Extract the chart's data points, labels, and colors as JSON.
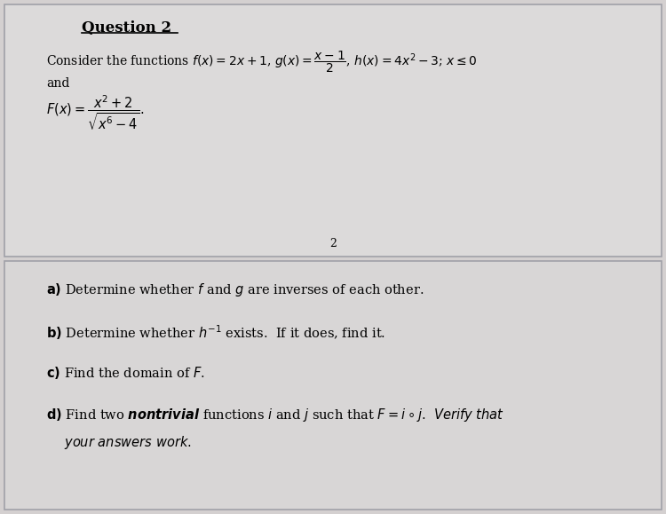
{
  "bg_color": "#d4d0d0",
  "top_section_bg": "#dcdada",
  "bottom_section_bg": "#d8d6d6",
  "divider_color": "#a0a0a8",
  "text_color": "#000000",
  "title": "Question 2",
  "page_number": "2"
}
